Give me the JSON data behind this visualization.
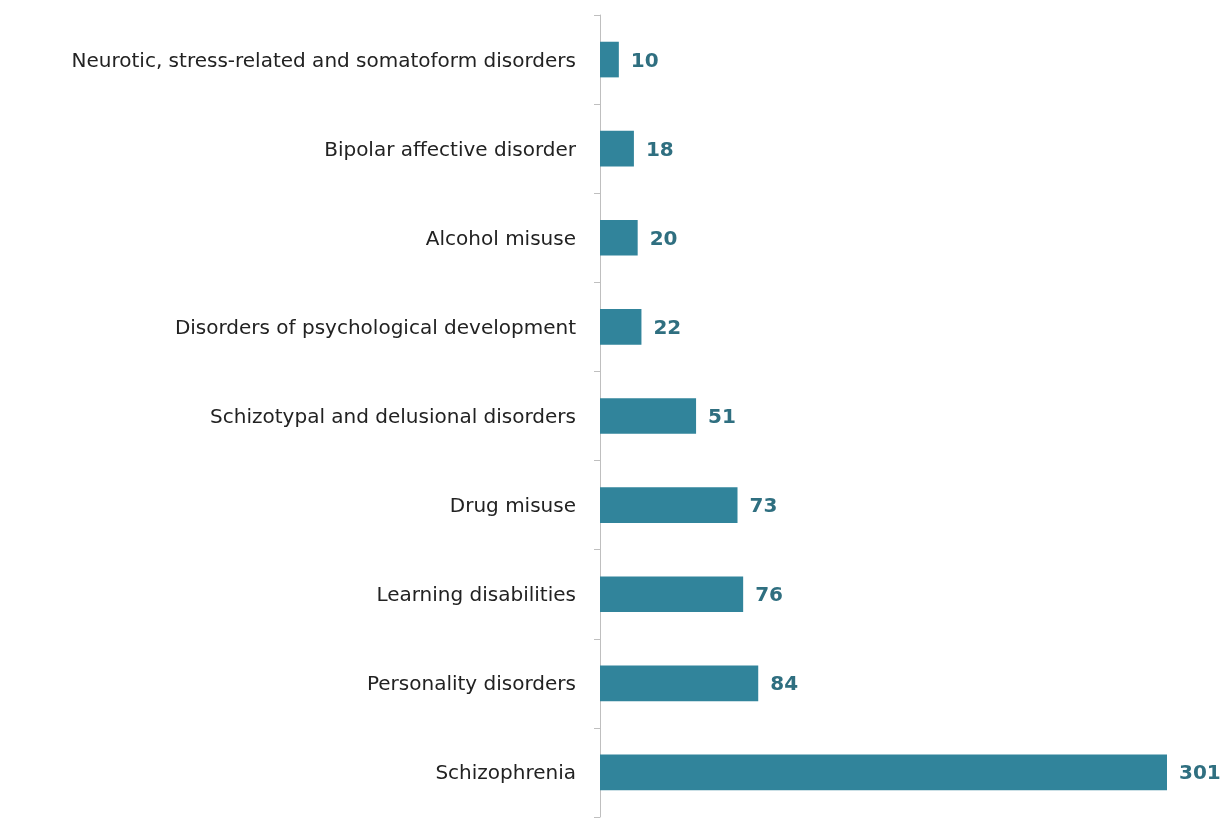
{
  "chart_data": {
    "type": "bar",
    "orientation": "horizontal",
    "categories": [
      "Neurotic, stress-related and somatoform disorders",
      "Bipolar affective disorder",
      "Alcohol misuse",
      "Disorders of psychological development",
      "Schizotypal and delusional disorders",
      "Drug misuse",
      "Learning disabilities",
      "Personality disorders",
      "Schizophrenia"
    ],
    "values": [
      10,
      18,
      20,
      22,
      51,
      73,
      76,
      84,
      301
    ],
    "color": "#31849b",
    "data_labels": true
  }
}
